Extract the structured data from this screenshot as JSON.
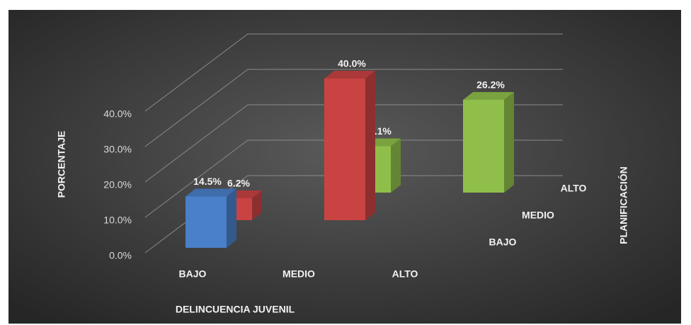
{
  "chart_data": {
    "type": "bar3d",
    "x_label": "DELINCUENCIA JUVENIL",
    "y_label": "PORCENTAJE",
    "z_label": "PLANIFICACIÓN",
    "categories": [
      "BAJO",
      "MEDIO",
      "ALTO"
    ],
    "series": [
      {
        "name": "BAJO",
        "color": "#4a7fc9",
        "values": [
          14.5,
          null,
          null
        ],
        "value_labels": [
          "14.5%",
          null,
          null
        ]
      },
      {
        "name": "MEDIO",
        "color": "#c94343",
        "values": [
          6.2,
          40.0,
          null
        ],
        "value_labels": [
          "6.2%",
          "40.0%",
          null
        ]
      },
      {
        "name": "ALTO",
        "color": "#8fbf4a",
        "values": [
          null,
          13.1,
          26.2
        ],
        "value_labels": [
          null,
          "13.1%",
          "26.2%"
        ]
      }
    ],
    "ylim": [
      0,
      40
    ],
    "yticks": [
      {
        "value": 0,
        "label": "0.0%"
      },
      {
        "value": 10,
        "label": "10.0%"
      },
      {
        "value": 20,
        "label": "20.0%"
      },
      {
        "value": 30,
        "label": "30.0%"
      },
      {
        "value": 40,
        "label": "40.0%"
      }
    ],
    "grid": true
  }
}
